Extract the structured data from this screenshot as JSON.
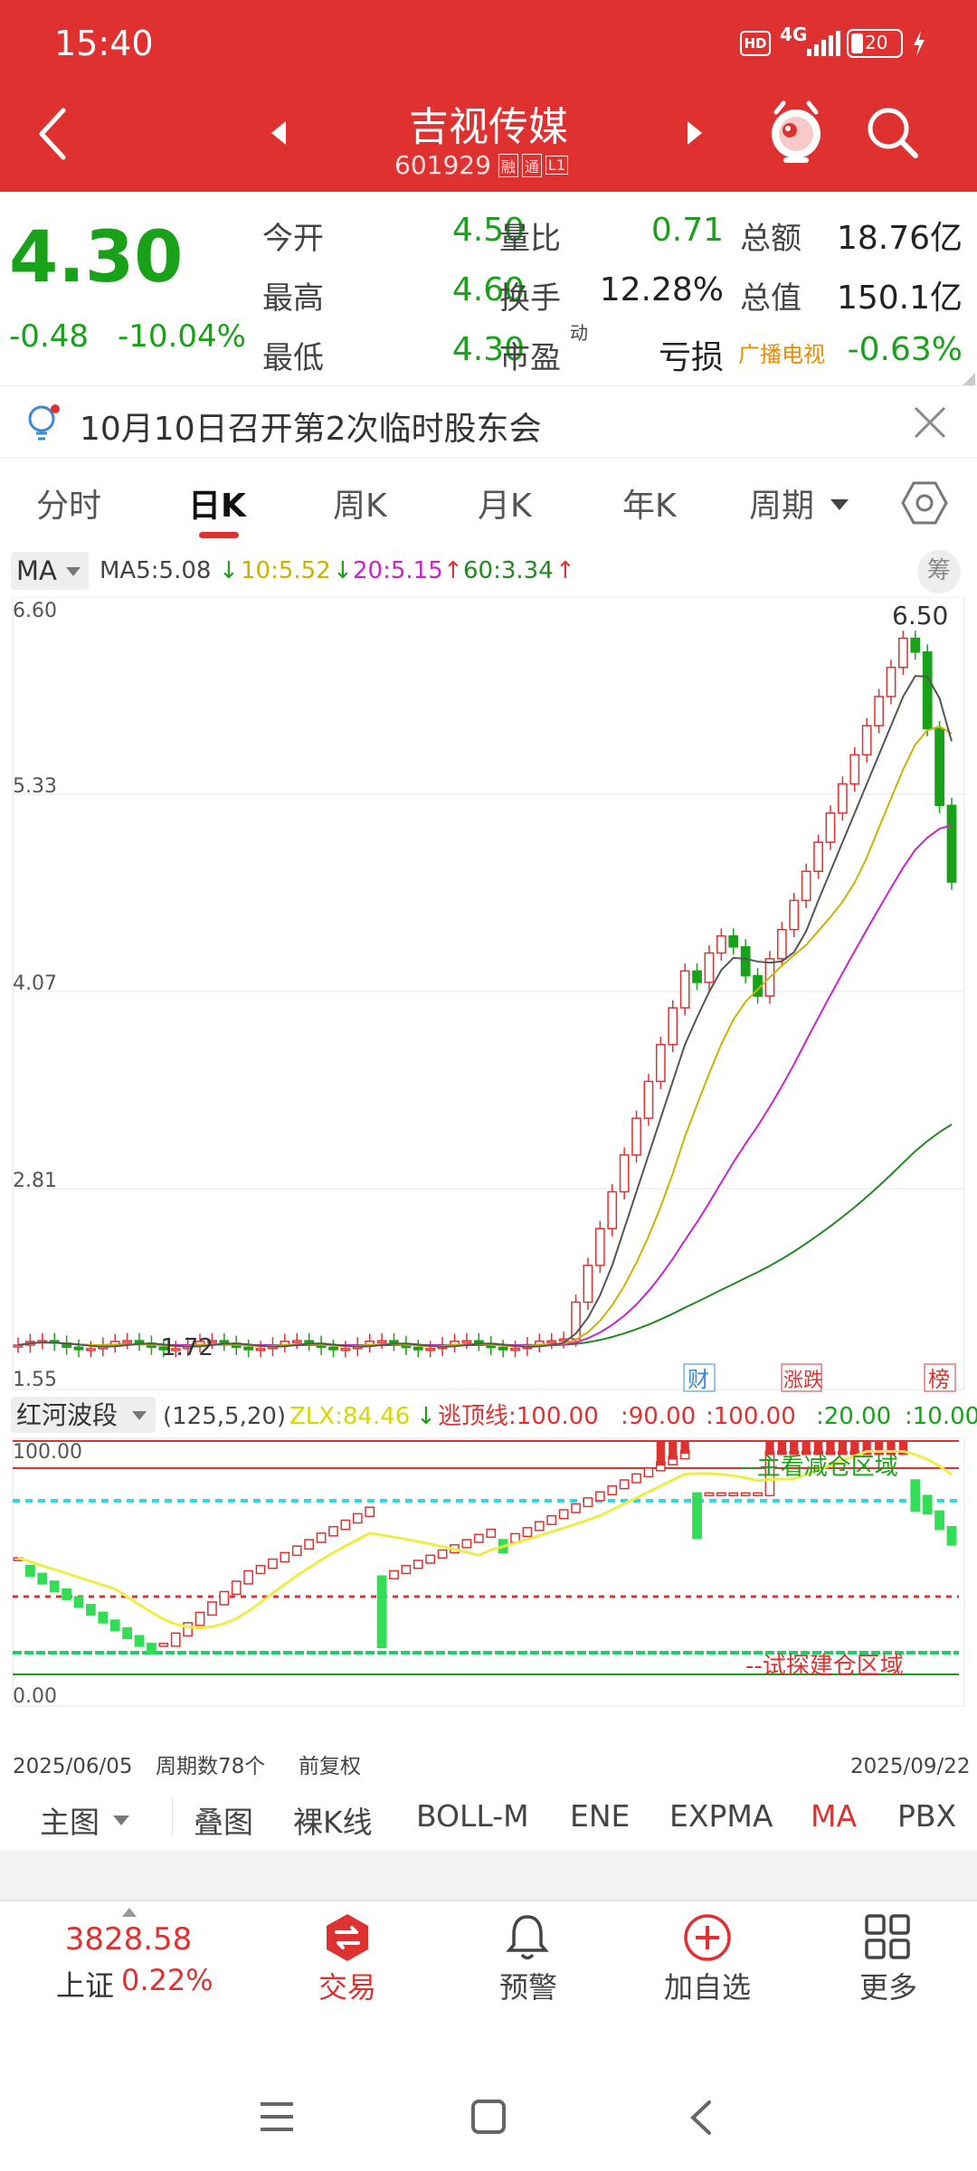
{
  "status": {
    "time": "15:40",
    "hd": "HD",
    "network": "4G",
    "battery": "20"
  },
  "header": {
    "name": "吉视传媒",
    "code": "601929",
    "tag1": "融",
    "tag2": "通",
    "tag3": "L1"
  },
  "quote": {
    "price": "4.30",
    "change": "-0.48",
    "change_pct": "-10.04%",
    "rows": [
      {
        "l1": "今开",
        "v1": "4.50",
        "l2": "量比",
        "v2": "0.71",
        "l3": "总额",
        "v3": "18.76亿"
      },
      {
        "l1": "最高",
        "v1": "4.60",
        "l2": "换手",
        "v2": "12.28%",
        "l3": "总值",
        "v3": "150.1亿"
      },
      {
        "l1": "最低",
        "v1": "4.30",
        "l2": "市盈",
        "v2": "亏损",
        "l3": "广播电视",
        "v3": "-0.63%"
      }
    ],
    "pe_sup": "动"
  },
  "notice": {
    "text": "10月10日召开第2次临时股东会"
  },
  "tabs": [
    "分时",
    "日K",
    "周K",
    "月K",
    "年K",
    "周期"
  ],
  "ma_bar": {
    "label": "MA",
    "ma5": "MA5:5.08",
    "ma10": "10:5.52",
    "ma20": "20:5.15",
    "ma60": "60:3.34",
    "chip": "筹"
  },
  "chart_data": [
    {
      "type": "candlestick",
      "title": "",
      "y_ticks": [
        "6.60",
        "5.33",
        "4.07",
        "2.81",
        "1.55"
      ],
      "ylim": [
        1.55,
        6.6
      ],
      "high_label": "6.50",
      "low_label": "1.72",
      "badges": [
        "财",
        "涨跌",
        "榜"
      ],
      "ma_series": [
        {
          "name": "MA5",
          "color": "#555555"
        },
        {
          "name": "MA10",
          "color": "#c8b400"
        },
        {
          "name": "MA20",
          "color": "#cc22cc"
        },
        {
          "name": "MA60",
          "color": "#228822"
        }
      ]
    },
    {
      "type": "bar",
      "title": "红河波段",
      "params": "(125,5,20)",
      "zlx": "ZLX:84.46",
      "escape": "逃顶线:100.00",
      "v1": ":90.00",
      "v2": ":100.00",
      "v3": ":20.00",
      "v4": ":10.00",
      "y_top": "100.00",
      "y_bottom": "0.00",
      "label_main": "--主看减仓区域",
      "label_build": "--试探建仓区域",
      "ylim": [
        0,
        100
      ]
    }
  ],
  "axis_footer": {
    "start": "2025/06/05",
    "count": "周期数78个",
    "adj": "前复权",
    "end": "2025/09/22"
  },
  "bottom_tabs": [
    "主图",
    "叠图",
    "裸K线",
    "BOLL-M",
    "ENE",
    "EXPMA",
    "MA",
    "PBX"
  ],
  "nav": {
    "index_value": "3828.58",
    "index_name": "上证",
    "index_pct": "0.22%",
    "trade": "交易",
    "alert": "预警",
    "add": "加自选",
    "more": "更多"
  },
  "colors": {
    "brand": "#e03131",
    "up": "#e03131",
    "down": "#1aa11a"
  }
}
